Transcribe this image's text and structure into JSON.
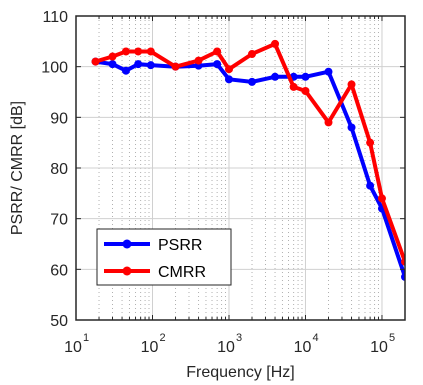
{
  "chart_data": {
    "type": "line",
    "xscale": "log",
    "xlabel": "Frequency [Hz]",
    "ylabel": "PSRR/ CMRR [dB]",
    "xlim": [
      10,
      200000
    ],
    "ylim": [
      50,
      110
    ],
    "yticks": [
      50,
      60,
      70,
      80,
      90,
      100,
      110
    ],
    "xticks": [
      {
        "base": "10",
        "exp": "1",
        "value": 10
      },
      {
        "base": "10",
        "exp": "2",
        "value": 100
      },
      {
        "base": "10",
        "exp": "3",
        "value": 1000
      },
      {
        "base": "10",
        "exp": "4",
        "value": 10000
      },
      {
        "base": "10",
        "exp": "5",
        "value": 100000
      }
    ],
    "grid": true,
    "legend_position": "bottom-left",
    "series": [
      {
        "name": "PSRR",
        "color": "#0000ff",
        "x": [
          18,
          30,
          45,
          65,
          95,
          200,
          400,
          700,
          1000,
          2000,
          4000,
          7000,
          10000,
          20000,
          40000,
          70000,
          100000,
          200000
        ],
        "y": [
          101,
          100.5,
          99.2,
          100.5,
          100.3,
          100,
          100.2,
          100.5,
          97.5,
          97,
          98,
          98,
          98,
          99,
          88,
          76.5,
          72,
          58.5
        ]
      },
      {
        "name": "CMRR",
        "color": "#ff0000",
        "x": [
          18,
          30,
          45,
          65,
          95,
          200,
          400,
          700,
          1000,
          2000,
          4000,
          7000,
          10000,
          20000,
          40000,
          70000,
          100000,
          200000
        ],
        "y": [
          101,
          102,
          103,
          103,
          103,
          100,
          101.2,
          103,
          99.5,
          102.5,
          104.5,
          96,
          95.2,
          89,
          96.5,
          85,
          74,
          61.5
        ]
      }
    ]
  }
}
